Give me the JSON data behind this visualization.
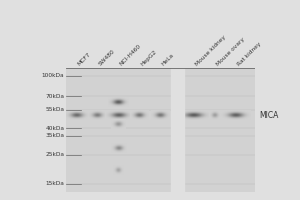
{
  "fig_bg": "#e0e0e0",
  "panel_bg_color": [
    210,
    210,
    210
  ],
  "band_dark": [
    80,
    80,
    80
  ],
  "divider_color": [
    224,
    224,
    224
  ],
  "ladder_labels": [
    "100kDa",
    "70kDa",
    "55kDa",
    "40kDa",
    "35kDa",
    "25kDa",
    "15kDa"
  ],
  "ladder_mw": [
    100,
    70,
    55,
    40,
    35,
    25,
    15
  ],
  "sample_labels": [
    "MCF7",
    "SW480",
    "NCI-H460",
    "HepG2",
    "HeLa",
    "Mouse kidney",
    "Mouse ovary",
    "Rat kidney"
  ],
  "mica_label": "MICA",
  "mica_mw": 50,
  "mw_min": 13,
  "mw_max": 115,
  "bands": [
    {
      "lane": 0,
      "mw": 50,
      "intensity": 0.8,
      "xw": 0.55,
      "yw": 3.5
    },
    {
      "lane": 1,
      "mw": 50,
      "intensity": 0.65,
      "xw": 0.45,
      "yw": 3.0
    },
    {
      "lane": 2,
      "mw": 63,
      "intensity": 0.9,
      "xw": 0.5,
      "yw": 3.0
    },
    {
      "lane": 2,
      "mw": 50,
      "intensity": 0.85,
      "xw": 0.65,
      "yw": 3.5
    },
    {
      "lane": 2,
      "mw": 43,
      "intensity": 0.45,
      "xw": 0.35,
      "yw": 2.5
    },
    {
      "lane": 2,
      "mw": 28,
      "intensity": 0.55,
      "xw": 0.38,
      "yw": 2.5
    },
    {
      "lane": 2,
      "mw": 19,
      "intensity": 0.35,
      "xw": 0.25,
      "yw": 2.0
    },
    {
      "lane": 3,
      "mw": 50,
      "intensity": 0.7,
      "xw": 0.45,
      "yw": 3.0
    },
    {
      "lane": 4,
      "mw": 50,
      "intensity": 0.7,
      "xw": 0.45,
      "yw": 3.0
    },
    {
      "lane": 5,
      "mw": 50,
      "intensity": 0.92,
      "xw": 0.8,
      "yw": 4.0
    },
    {
      "lane": 6,
      "mw": 50,
      "intensity": 0.4,
      "xw": 0.28,
      "yw": 3.0
    },
    {
      "lane": 7,
      "mw": 50,
      "intensity": 0.88,
      "xw": 0.7,
      "yw": 4.0
    }
  ],
  "label_fontsize": 4.2,
  "tick_fontsize": 4.2,
  "mica_fontsize": 5.5
}
